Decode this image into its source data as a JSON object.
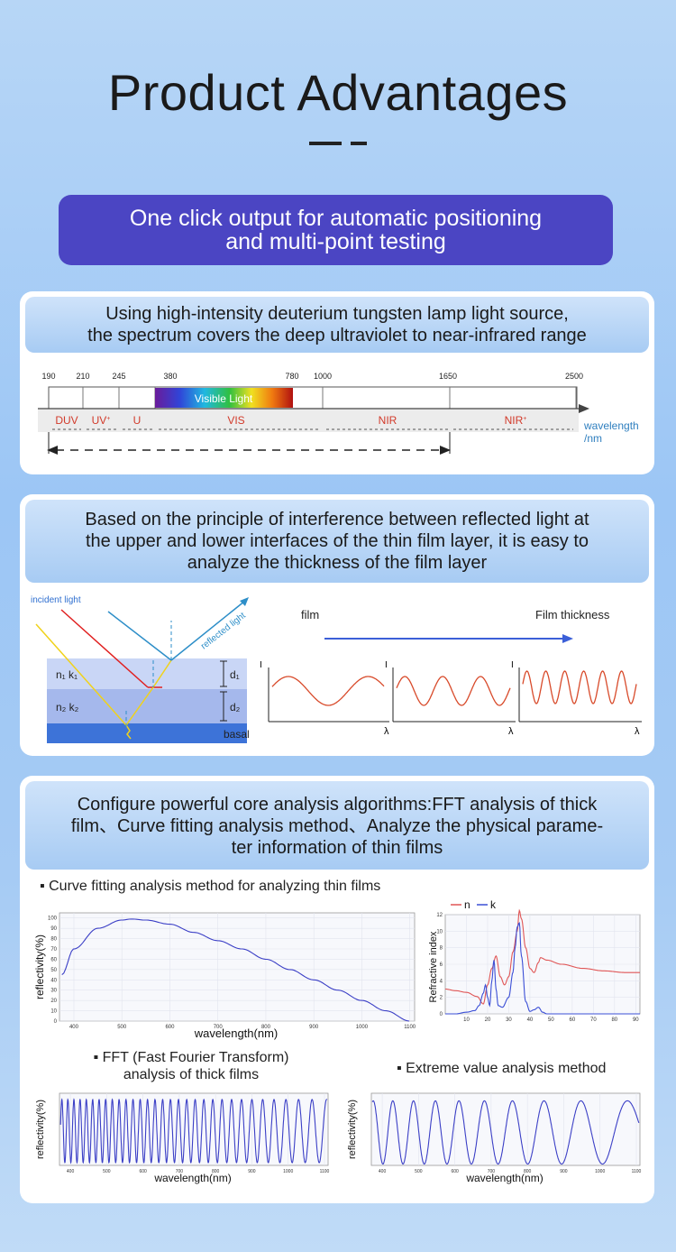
{
  "header": {
    "title": "Product Advantages",
    "banner": [
      "One click output for automatic positioning",
      "and multi-point testing"
    ]
  },
  "spectrum": {
    "heading": [
      "Using high-intensity deuterium tungsten lamp light source,",
      "the spectrum covers the deep ultraviolet to near-infrared range"
    ],
    "ticks": [
      "190",
      "210",
      "245",
      "380",
      "780",
      "1000",
      "1650",
      "2500"
    ],
    "visible_label": "Visible Light",
    "bands": [
      "DUV",
      "UV",
      "U",
      "VIS",
      "NIR",
      "NIR"
    ],
    "axis_label": [
      "wavelength",
      "/nm"
    ]
  },
  "interference": {
    "heading": [
      "Based on the principle of interference between reflected light at",
      "the upper and lower interfaces of the thin film layer, it is easy to",
      "analyze the thickness of the film layer"
    ],
    "incident_label": "incident light",
    "reflected_label": "reflected light",
    "layer1": "n₁ k₁",
    "layer2": "n₂ k₂",
    "d1": "d₁",
    "d2": "d₂",
    "basal": "basal",
    "film_label": "film",
    "thickness_label": "Film thickness",
    "y_axis_letter": "I",
    "x_axis_letter": "λ"
  },
  "analysis": {
    "heading": [
      "Configure powerful core analysis algorithms:FFT analysis of thick",
      "film、Curve fitting analysis method、Analyze the physical parame-",
      "ter information of thin films"
    ],
    "curve_title": "▪ Curve fitting analysis method for analyzing thin films",
    "fft_title": [
      "▪ FFT (Fast Fourier Transform)",
      "analysis of thick films"
    ],
    "extreme_title": "▪ Extreme value analysis method",
    "reflectivity_label": "reflectivity(%)",
    "wavelength_label": "wavelength(nm)",
    "refractive_label": "Refractive index",
    "legend_n": "n",
    "legend_k": "k"
  },
  "chart_data": [
    {
      "type": "line",
      "title": "Curve fitting analysis method for analyzing thin films",
      "xlabel": "wavelength(nm)",
      "ylabel": "reflectivity(%)",
      "xlim": [
        370,
        1110
      ],
      "ylim": [
        0,
        105
      ],
      "xticks": [
        400,
        500,
        600,
        700,
        800,
        900,
        1000,
        1100
      ],
      "yticks": [
        0,
        10,
        20,
        30,
        40,
        50,
        60,
        70,
        80,
        90,
        100
      ],
      "series": [
        {
          "color": "#3b3fc6",
          "x": [
            375,
            400,
            450,
            500,
            520,
            550,
            600,
            650,
            700,
            750,
            800,
            850,
            900,
            950,
            1000,
            1050,
            1100
          ],
          "y": [
            45,
            70,
            90,
            98,
            99,
            98,
            94,
            86,
            78,
            70,
            60,
            50,
            40,
            30,
            20,
            10,
            0
          ]
        }
      ]
    },
    {
      "type": "line",
      "xlabel": "",
      "ylabel": "Refractive index",
      "xlim": [
        0,
        92
      ],
      "ylim": [
        0,
        12
      ],
      "xticks": [
        10,
        20,
        30,
        40,
        50,
        60,
        70,
        80,
        90
      ],
      "yticks": [
        0,
        2,
        4,
        6,
        8,
        10,
        12
      ],
      "legend": "top-left",
      "series": [
        {
          "name": "n",
          "color": "#e05656",
          "x": [
            0,
            5,
            10,
            15,
            18,
            20,
            22,
            24,
            26,
            28,
            30,
            32,
            34,
            35,
            36,
            38,
            40,
            42,
            44,
            45,
            48,
            55,
            65,
            75,
            85,
            92
          ],
          "y": [
            3,
            2.8,
            2.6,
            2.1,
            1.2,
            3.5,
            5.5,
            7,
            4.5,
            3.5,
            4.5,
            7.5,
            10,
            12.5,
            11.5,
            8,
            5.5,
            5,
            6.2,
            6.8,
            6.5,
            6,
            5.5,
            5.2,
            5,
            5
          ]
        },
        {
          "name": "k",
          "color": "#3b4fd6",
          "x": [
            0,
            5,
            10,
            14,
            16,
            18,
            19,
            20,
            21,
            22,
            23,
            24,
            25,
            27,
            30,
            32,
            33,
            34,
            35,
            36,
            38,
            40,
            42,
            44,
            46,
            48,
            60,
            92
          ],
          "y": [
            0,
            0,
            0.2,
            0.4,
            1,
            2.5,
            3.5,
            2,
            1,
            4,
            6.5,
            3,
            1,
            0.8,
            2,
            5,
            8,
            10.5,
            11,
            7,
            1.5,
            0.3,
            0.5,
            0.8,
            0.2,
            0,
            0,
            0
          ]
        }
      ]
    },
    {
      "type": "line",
      "title": "FFT (Fast Fourier Transform) analysis of thick films",
      "xlabel": "wavelength(nm)",
      "ylabel": "reflectivity(%)",
      "xlim": [
        370,
        1110
      ],
      "ylim": [
        0,
        105
      ],
      "xticks": [
        400,
        500,
        600,
        700,
        800,
        900,
        1000,
        1100
      ],
      "series": [
        {
          "color": "#3b3fc6",
          "x": [
            370,
            1110
          ],
          "y": [
            0,
            100
          ],
          "pattern": "oscillation",
          "periods_start": 17,
          "periods_end": 47
        }
      ]
    },
    {
      "type": "line",
      "title": "Extreme value analysis method",
      "xlabel": "wavelength(nm)",
      "ylabel": "reflectivity(%)",
      "xlim": [
        370,
        1110
      ],
      "ylim": [
        0,
        105
      ],
      "xticks": [
        400,
        500,
        600,
        700,
        800,
        900,
        1000,
        1100
      ],
      "series": [
        {
          "color": "#3b3fc6",
          "x": [
            370,
            1110
          ],
          "y": [
            0,
            100
          ],
          "pattern": "oscillation",
          "cycles": 7.5
        }
      ]
    }
  ]
}
